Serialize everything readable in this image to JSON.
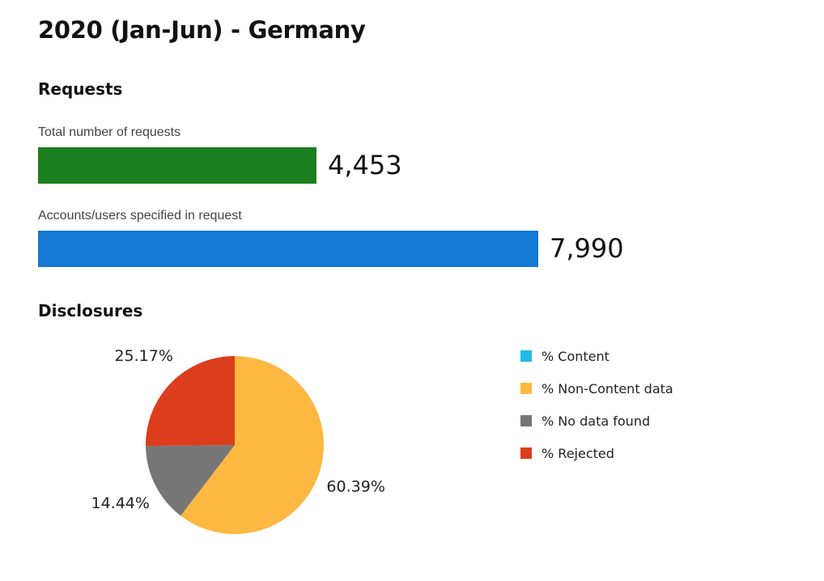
{
  "title": "2020 (Jan-Jun) - Germany",
  "requests": {
    "heading": "Requests",
    "bars": [
      {
        "label": "Total number of requests",
        "value": 4453,
        "display": "4,453",
        "color": "#1a7f1e"
      },
      {
        "label": "Accounts/users specified in request",
        "value": 7990,
        "display": "7,990",
        "color": "#1379d3"
      }
    ]
  },
  "disclosures": {
    "heading": "Disclosures"
  },
  "chart_data": [
    {
      "type": "bar",
      "orientation": "horizontal",
      "categories": [
        "Total number of requests",
        "Accounts/users specified in request"
      ],
      "values": [
        4453,
        7990
      ],
      "data_labels": [
        "4,453",
        "7,990"
      ]
    },
    {
      "type": "pie",
      "categories": [
        "% Content",
        "% Non-Content data",
        "% No data found",
        "% Rejected"
      ],
      "values": [
        0,
        60.39,
        14.44,
        25.17
      ],
      "data_labels": [
        "",
        "60.39%",
        "14.44%",
        "25.17%"
      ],
      "colors": [
        "#1ebbe6",
        "#fdb841",
        "#767676",
        "#dc3d1d"
      ],
      "legend_position": "right"
    }
  ]
}
